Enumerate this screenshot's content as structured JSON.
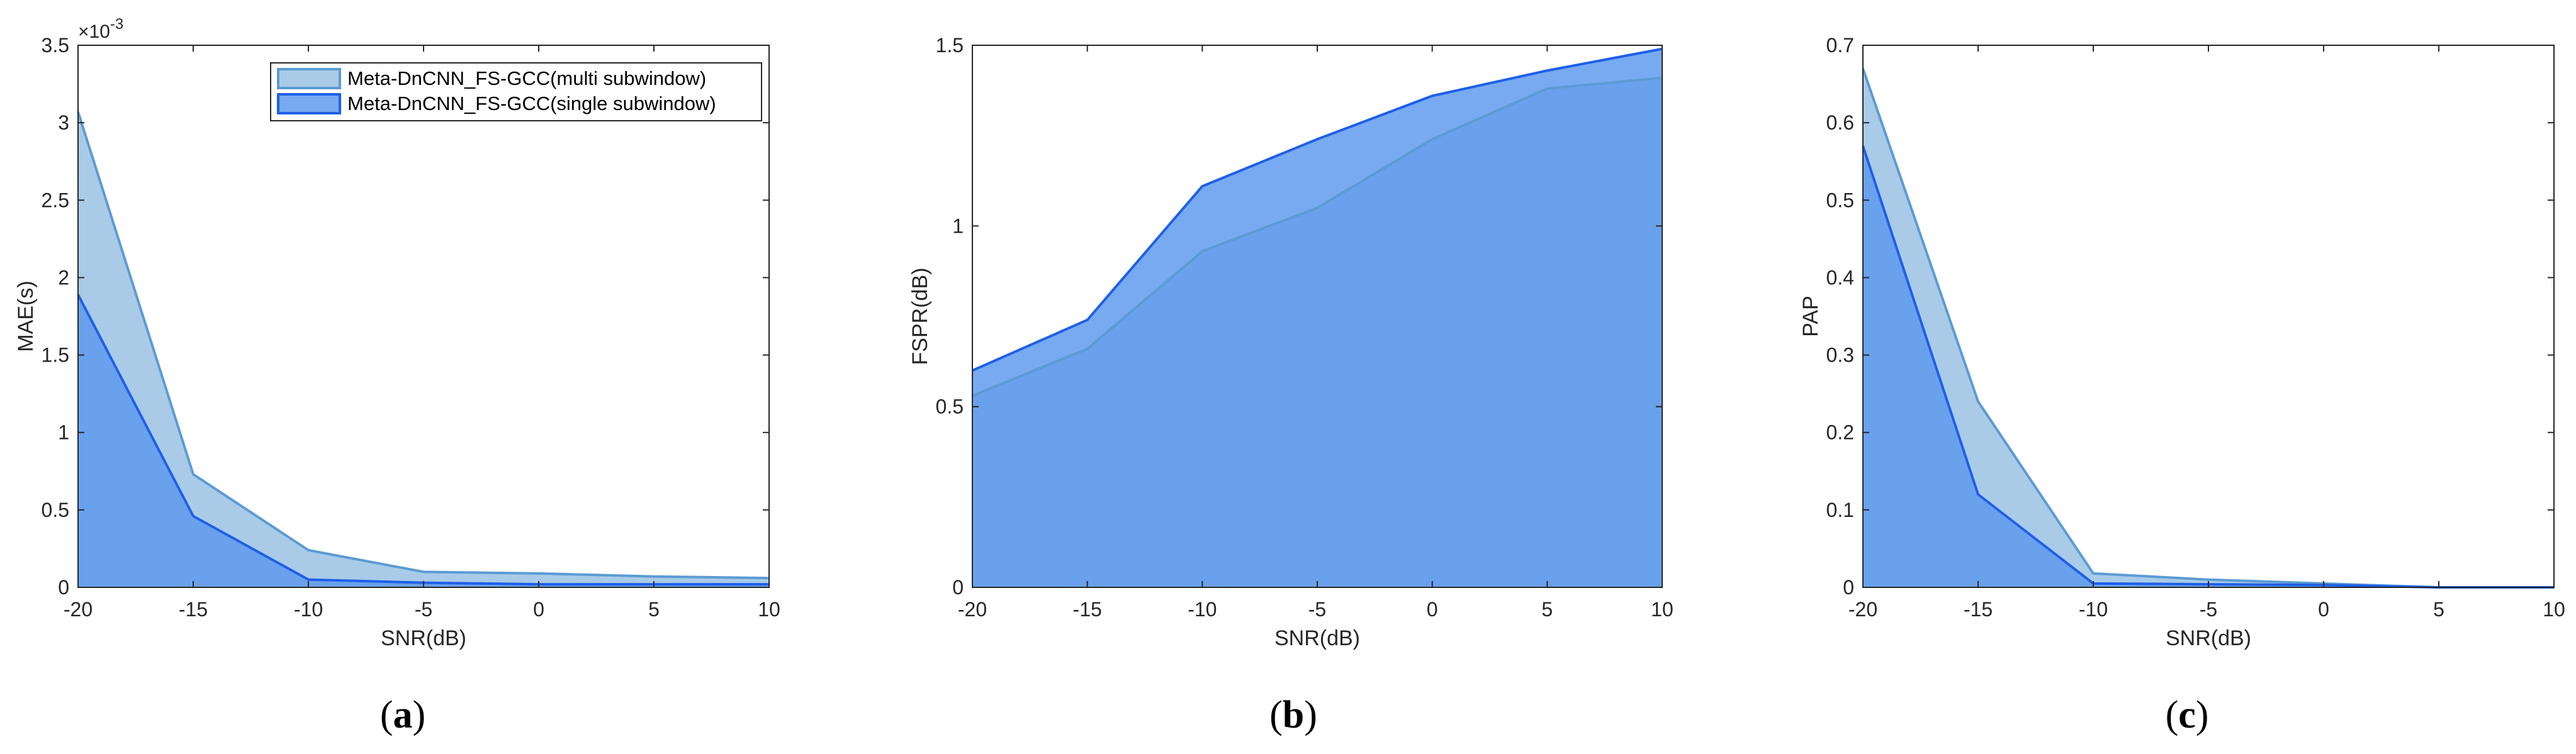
{
  "colors": {
    "multi_fill": "#a9cbe8",
    "multi_line": "#5b9bd5",
    "single_fill": "#5a97ee",
    "single_line": "#1f5fe8",
    "axis": "#262626"
  },
  "chart_data": [
    {
      "type": "area",
      "caption_letter": "a",
      "xlabel": "SNR(dB)",
      "ylabel": "MAE(s)",
      "y_exponent_base": "×10",
      "y_exponent_power": "-3",
      "xlim": [
        -20,
        10
      ],
      "ylim": [
        0,
        3.5
      ],
      "xticks": [
        -20,
        -15,
        -10,
        -5,
        0,
        5,
        10
      ],
      "yticks": [
        0,
        0.5,
        1,
        1.5,
        2,
        2.5,
        3,
        3.5
      ],
      "x": [
        -20,
        -15,
        -10,
        -5,
        0,
        5,
        10
      ],
      "legend_position": "top-right",
      "series": [
        {
          "name": "Meta-DnCNN_FS-GCC(multi subwindow)",
          "values": [
            3.07,
            0.73,
            0.24,
            0.1,
            0.09,
            0.07,
            0.06
          ]
        },
        {
          "name": "Meta-DnCNN_FS-GCC(single subwindow)",
          "values": [
            1.89,
            0.46,
            0.05,
            0.03,
            0.02,
            0.02,
            0.02
          ]
        }
      ]
    },
    {
      "type": "area",
      "caption_letter": "b",
      "xlabel": "SNR(dB)",
      "ylabel": "FSPR(dB)",
      "xlim": [
        -20,
        10
      ],
      "ylim": [
        0,
        1.5
      ],
      "xticks": [
        -20,
        -15,
        -10,
        -5,
        0,
        5,
        10
      ],
      "yticks": [
        0,
        0.5,
        1,
        1.5
      ],
      "x": [
        -20,
        -15,
        -10,
        -5,
        0,
        5,
        10
      ],
      "series": [
        {
          "values": [
            0.53,
            0.66,
            0.93,
            1.05,
            1.24,
            1.38,
            1.41
          ]
        },
        {
          "values": [
            0.6,
            0.74,
            1.11,
            1.24,
            1.36,
            1.43,
            1.49
          ]
        }
      ]
    },
    {
      "type": "area",
      "caption_letter": "c",
      "xlabel": "SNR(dB)",
      "ylabel": "PAP",
      "xlim": [
        -20,
        10
      ],
      "ylim": [
        0,
        0.7
      ],
      "xticks": [
        -20,
        -15,
        -10,
        -5,
        0,
        5,
        10
      ],
      "yticks": [
        0,
        0.1,
        0.2,
        0.3,
        0.4,
        0.5,
        0.6,
        0.7
      ],
      "x": [
        -20,
        -15,
        -10,
        -5,
        0,
        5,
        10
      ],
      "series": [
        {
          "values": [
            0.67,
            0.24,
            0.018,
            0.01,
            0.005,
            0.0,
            0.0
          ]
        },
        {
          "values": [
            0.57,
            0.12,
            0.005,
            0.004,
            0.003,
            0.0,
            0.0
          ]
        }
      ]
    }
  ]
}
